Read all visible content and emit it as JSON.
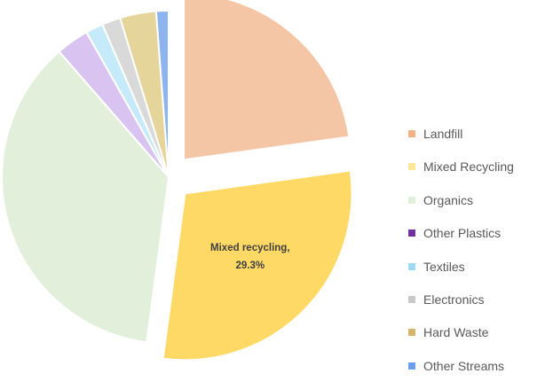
{
  "chart_data": {
    "type": "pie",
    "title": "",
    "legend_position": "right",
    "slices": [
      {
        "name": "Landfill",
        "value": 22.8,
        "color": "#f4c6a6",
        "exploded": true
      },
      {
        "name": "Mixed Recycling",
        "value": 29.3,
        "color": "#ffd966",
        "exploded": true
      },
      {
        "name": "Organics",
        "value": 36.5,
        "color": "#e2efda",
        "exploded": false
      },
      {
        "name": "Other Plastics",
        "value": 3.2,
        "color": "#d9c3f0",
        "exploded": false
      },
      {
        "name": "Textiles",
        "value": 1.7,
        "color": "#c5ebfa",
        "exploded": false
      },
      {
        "name": "Electronics",
        "value": 1.8,
        "color": "#d9d9d9",
        "exploded": false
      },
      {
        "name": "Hard Waste",
        "value": 3.5,
        "color": "#e6d59a",
        "exploded": false
      },
      {
        "name": "Other Streams",
        "value": 1.2,
        "color": "#8eb4f0",
        "exploded": false
      }
    ],
    "legend": [
      {
        "label": "Landfill",
        "color": "#f4b183"
      },
      {
        "label": "Mixed Recycling",
        "color": "#ffe699"
      },
      {
        "label": "Organics",
        "color": "#e2efda"
      },
      {
        "label": "Other Plastics",
        "color": "#7030a0"
      },
      {
        "label": "Textiles",
        "color": "#9dd9f3"
      },
      {
        "label": "Electronics",
        "color": "#c9c9c9"
      },
      {
        "label": "Hard Waste",
        "color": "#d6b56d"
      },
      {
        "label": "Other Streams",
        "color": "#6d9eeb"
      }
    ],
    "data_labels": [
      {
        "slice": "Mixed Recycling",
        "line1": "Mixed recycling,",
        "line2": "29.3%"
      }
    ]
  }
}
